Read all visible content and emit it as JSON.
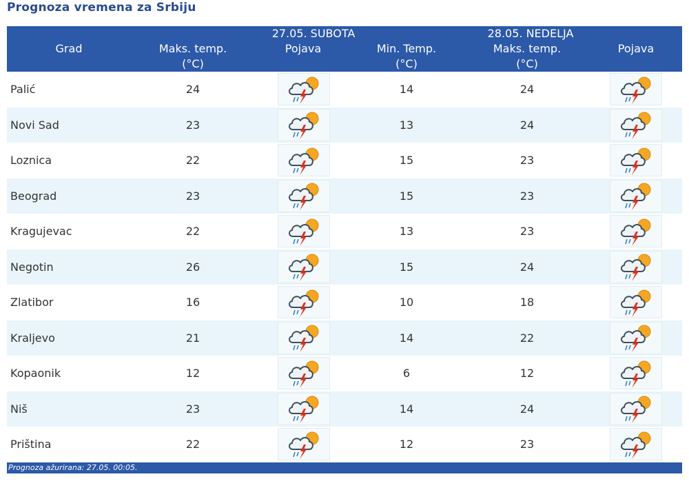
{
  "page": {
    "title": "Prognoza vremena za Srbiju"
  },
  "header": {
    "city_label": "Grad",
    "day1": {
      "date_label": "27.05. SUBOTA",
      "max_label_line1": "Maks. temp.",
      "max_label_line2": "(°C)",
      "weather_label": "Pojava"
    },
    "day2": {
      "date_label": "28.05. NEDELJA",
      "min_label_line1": "Min. Temp.",
      "min_label_line2": "(°C)",
      "max_label_line1": "Maks. temp.",
      "max_label_line2": "(°C)",
      "weather_label": "Pojava"
    }
  },
  "rows": [
    {
      "city": "Palić",
      "d1_max": "24",
      "d2_min": "14",
      "d2_max": "24",
      "d1_icon": "thunderstorm-sun-icon",
      "d2_icon": "thunderstorm-sun-icon"
    },
    {
      "city": "Novi Sad",
      "d1_max": "23",
      "d2_min": "13",
      "d2_max": "24",
      "d1_icon": "thunderstorm-sun-icon",
      "d2_icon": "thunderstorm-sun-icon"
    },
    {
      "city": "Loznica",
      "d1_max": "22",
      "d2_min": "15",
      "d2_max": "23",
      "d1_icon": "thunderstorm-sun-icon",
      "d2_icon": "thunderstorm-sun-icon"
    },
    {
      "city": "Beograd",
      "d1_max": "23",
      "d2_min": "15",
      "d2_max": "23",
      "d1_icon": "thunderstorm-sun-icon",
      "d2_icon": "thunderstorm-sun-icon"
    },
    {
      "city": "Kragujevac",
      "d1_max": "22",
      "d2_min": "13",
      "d2_max": "23",
      "d1_icon": "thunderstorm-sun-icon",
      "d2_icon": "thunderstorm-sun-icon"
    },
    {
      "city": "Negotin",
      "d1_max": "26",
      "d2_min": "15",
      "d2_max": "24",
      "d1_icon": "thunderstorm-sun-icon",
      "d2_icon": "thunderstorm-sun-icon"
    },
    {
      "city": "Zlatibor",
      "d1_max": "16",
      "d2_min": "10",
      "d2_max": "18",
      "d1_icon": "thunderstorm-sun-icon",
      "d2_icon": "thunderstorm-sun-icon"
    },
    {
      "city": "Kraljevo",
      "d1_max": "21",
      "d2_min": "14",
      "d2_max": "22",
      "d1_icon": "thunderstorm-sun-icon",
      "d2_icon": "thunderstorm-sun-icon"
    },
    {
      "city": "Kopaonik",
      "d1_max": "12",
      "d2_min": "6",
      "d2_max": "12",
      "d1_icon": "thunderstorm-sun-icon",
      "d2_icon": "thunderstorm-sun-icon"
    },
    {
      "city": "Niš",
      "d1_max": "23",
      "d2_min": "14",
      "d2_max": "24",
      "d1_icon": "thunderstorm-sun-icon",
      "d2_icon": "thunderstorm-sun-icon"
    },
    {
      "city": "Priština",
      "d1_max": "22",
      "d2_min": "12",
      "d2_max": "23",
      "d1_icon": "thunderstorm-sun-icon",
      "d2_icon": "thunderstorm-sun-icon"
    }
  ],
  "footer": {
    "updated_text": "Prognoza ažurirana:  27.05. 00:05."
  },
  "colors": {
    "header_bg": "#2c59a8",
    "title_text": "#2a4b8d",
    "alt_row_bg": "#e9f5fa",
    "sun": "#f5a623",
    "lightning": "#e0301e"
  }
}
